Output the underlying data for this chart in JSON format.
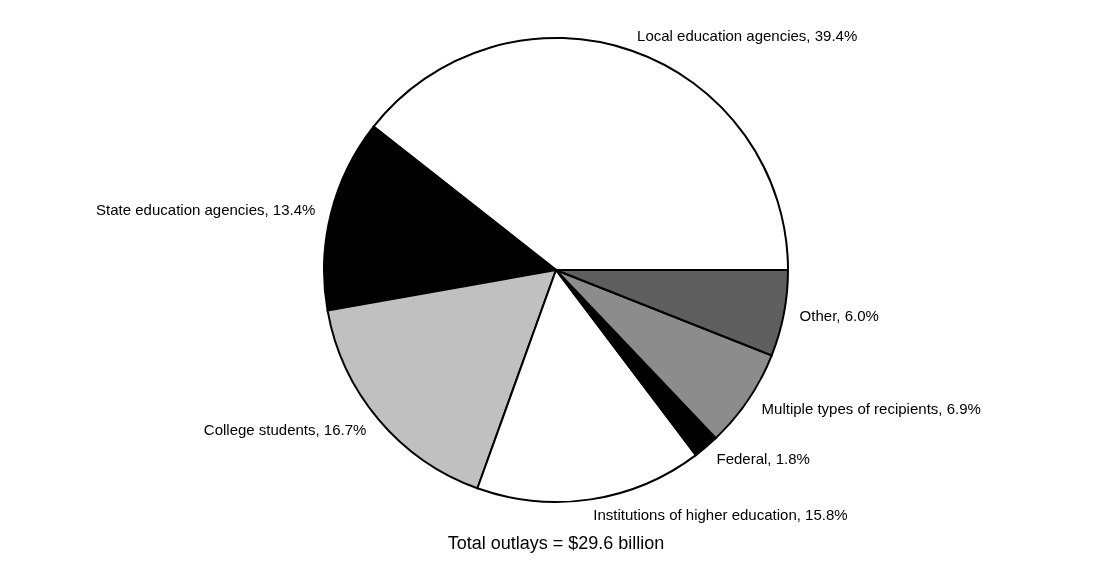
{
  "chart_data": {
    "type": "pie",
    "categories": [
      "Local education agencies",
      "State education agencies",
      "College students",
      "Institutions of higher education",
      "Federal",
      "Multiple types of recipients",
      "Other"
    ],
    "values": [
      39.4,
      13.4,
      16.7,
      15.8,
      1.8,
      6.9,
      6.0
    ],
    "colors": [
      "#ffffff",
      "#000000",
      "#c0c0c0",
      "#ffffff",
      "#000000",
      "#8c8c8c",
      "#5f5f5f"
    ],
    "value_labels": [
      "39.4%",
      "13.4%",
      "16.7%",
      "15.8%",
      "1.8%",
      "6.9%",
      "6.0%"
    ],
    "annotations": [
      "Total outlays = $29.6 billion"
    ],
    "legend": false
  }
}
